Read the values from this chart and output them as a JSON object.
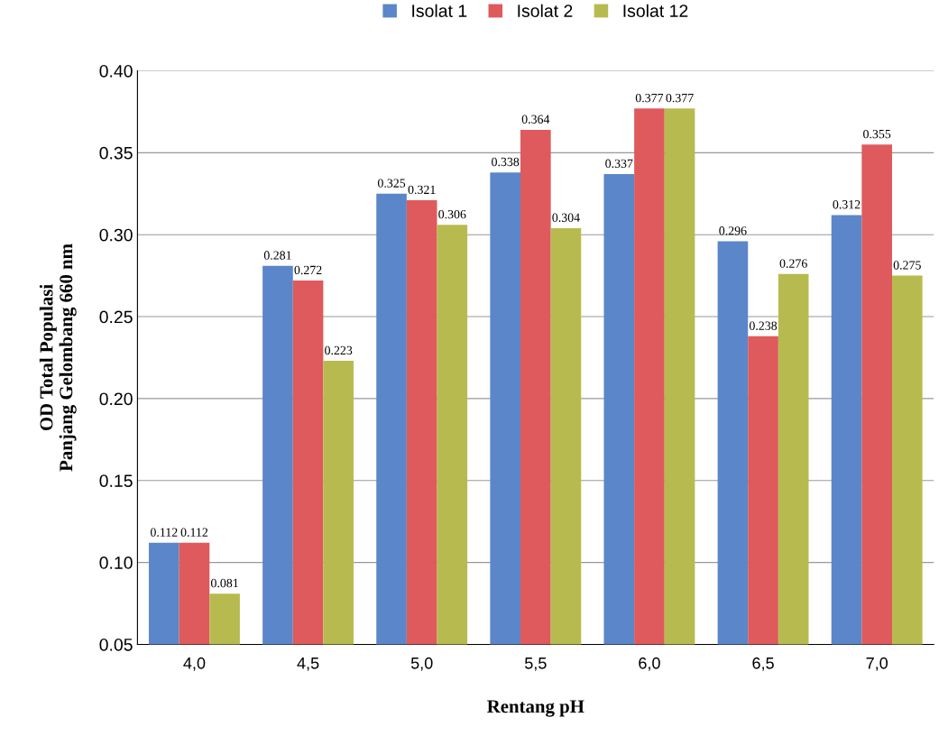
{
  "chart_data": {
    "type": "bar",
    "xlabel": "Rentang pH",
    "ylabel": "OD Total Populasi\nPanjang Gelombang 660 nm",
    "categories": [
      "4,0",
      "4,5",
      "5,0",
      "5,5",
      "6,0",
      "6,5",
      "7,0"
    ],
    "series": [
      {
        "name": "Isolat 1",
        "color": "#5b86c9",
        "values": [
          0.112,
          0.281,
          0.325,
          0.338,
          0.337,
          0.296,
          0.312
        ]
      },
      {
        "name": "Isolat 2",
        "color": "#de5a5c",
        "values": [
          0.112,
          0.272,
          0.321,
          0.364,
          0.377,
          0.238,
          0.355
        ]
      },
      {
        "name": "Isolat 12",
        "color": "#b7bb4f",
        "values": [
          0.081,
          0.223,
          0.306,
          0.304,
          0.377,
          0.276,
          0.275
        ]
      }
    ],
    "ylim": [
      0.05,
      0.4
    ],
    "yticks": [
      {
        "value": 0.05,
        "label": "0.05"
      },
      {
        "value": 0.1,
        "label": "0.10"
      },
      {
        "value": 0.15,
        "label": "0.15"
      },
      {
        "value": 0.2,
        "label": "0.20"
      },
      {
        "value": 0.25,
        "label": "0.25"
      },
      {
        "value": 0.3,
        "label": "0.30"
      },
      {
        "value": 0.35,
        "label": "0.35"
      },
      {
        "value": 0.4,
        "label": "0.40"
      }
    ],
    "grid": "y",
    "legend": "top",
    "data_labels": true
  }
}
